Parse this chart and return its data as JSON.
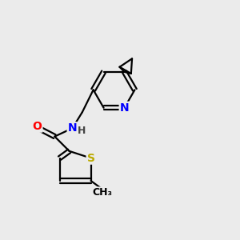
{
  "bg_color": "#ebebeb",
  "bond_color": "#000000",
  "bond_width": 1.6,
  "atom_colors": {
    "O": "#ff0000",
    "N": "#0000ff",
    "S": "#bbaa00",
    "H": "#444444",
    "C": "#000000"
  },
  "font_size": 10,
  "figsize": [
    3.0,
    3.0
  ],
  "dpi": 100
}
